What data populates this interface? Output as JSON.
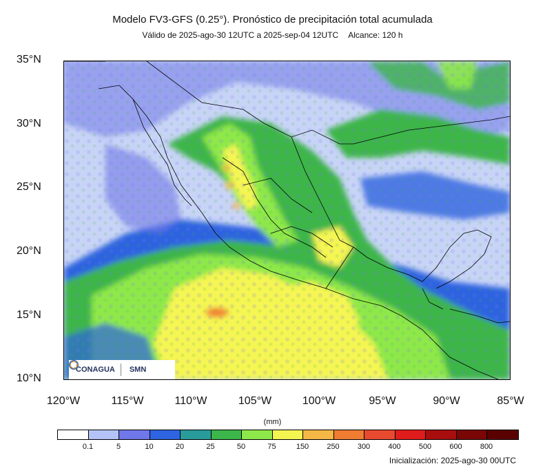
{
  "title": "Modelo FV3-GFS (0.25°). Pronóstico de precipitación total acumulada",
  "subtitle": {
    "validity": "Válido de 2025-ago-30 12UTC a 2025-sep-04 12UTC",
    "range": "Alcance: 120 h"
  },
  "map": {
    "lat_range": [
      10,
      35
    ],
    "lon_range": [
      -120,
      -85
    ],
    "lat_labels": [
      "35°N",
      "30°N",
      "25°N",
      "20°N",
      "15°N",
      "10°N"
    ],
    "lon_labels": [
      "120°W",
      "115°W",
      "110°W",
      "105°W",
      "100°W",
      "95°W",
      "90°W",
      "85°W"
    ],
    "background_color": "#c8d4f6"
  },
  "colorbar": {
    "units": "(mm)",
    "thresholds": [
      "0.1",
      "5",
      "10",
      "20",
      "25",
      "50",
      "75",
      "150",
      "250",
      "300",
      "400",
      "500",
      "600",
      "800"
    ],
    "colors": [
      "#ffffff",
      "#b4c3f5",
      "#7077e8",
      "#2e64e0",
      "#2a9b9b",
      "#3cb54a",
      "#8ee84a",
      "#f5f552",
      "#f5b846",
      "#f07c32",
      "#e84a30",
      "#e01c1c",
      "#a80e0e",
      "#7a0606",
      "#5a0000"
    ]
  },
  "logos": {
    "left": "CONAGUA",
    "right": "SMN"
  },
  "init": "Inicialización: 2025-ago-30 00UTC"
}
